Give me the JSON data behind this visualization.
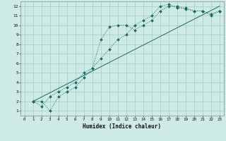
{
  "xlabel": "Humidex (Indice chaleur)",
  "bg_color": "#ceeae6",
  "grid_color": "#aacfcb",
  "line_color": "#1a6b5e",
  "xlim": [
    -0.5,
    23.5
  ],
  "ylim": [
    0.5,
    12.5
  ],
  "xticks": [
    0,
    1,
    2,
    3,
    4,
    5,
    6,
    7,
    8,
    9,
    10,
    11,
    12,
    13,
    14,
    15,
    16,
    17,
    18,
    19,
    20,
    21,
    22,
    23
  ],
  "yticks": [
    1,
    2,
    3,
    4,
    5,
    6,
    7,
    8,
    9,
    10,
    11,
    12
  ],
  "line1_x": [
    1,
    2,
    3,
    4,
    5,
    6,
    7,
    8,
    9,
    10,
    11,
    12,
    13,
    14,
    15,
    16,
    17,
    18,
    19,
    20,
    21,
    22,
    23
  ],
  "line1_y": [
    2,
    2,
    1,
    2.5,
    3,
    3.5,
    4.5,
    5.5,
    8.5,
    9.8,
    10,
    10,
    9.5,
    10,
    10.5,
    11.5,
    12,
    12,
    11.7,
    11.5,
    11.5,
    11,
    11.5
  ],
  "line2_x": [
    1,
    2,
    3,
    4,
    5,
    6,
    7,
    8,
    9,
    10,
    11,
    12,
    13,
    14,
    15,
    16,
    17,
    18,
    19,
    20,
    21,
    22,
    23
  ],
  "line2_y": [
    2,
    1.5,
    2.5,
    3,
    3.5,
    4,
    5,
    5.5,
    6.5,
    7.5,
    8.5,
    9,
    10,
    10.5,
    11,
    12,
    12.2,
    11.8,
    11.8,
    11.5,
    11.5,
    11.2,
    11.5
  ],
  "line3_x": [
    1,
    23
  ],
  "line3_y": [
    2,
    12
  ]
}
